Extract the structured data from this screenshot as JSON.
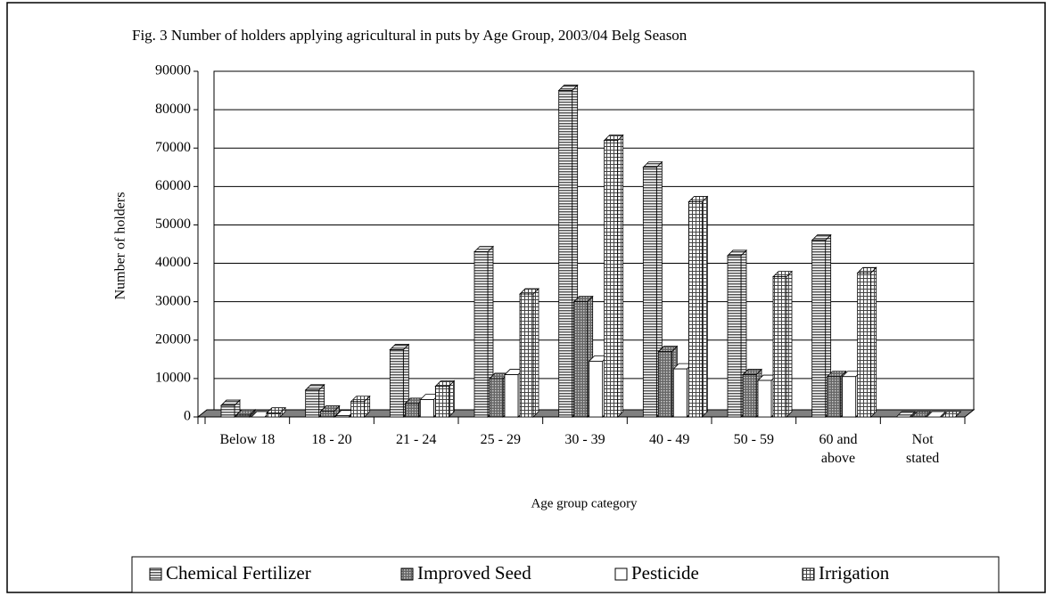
{
  "chart_data": {
    "type": "bar3d",
    "title": "Fig. 3 Number of holders applying agricultural in puts by Age Group, 2003/04 Belg Season",
    "x_label": "Age group category",
    "y_label": "Number of holders",
    "categories": [
      "Below 18",
      "18 - 20",
      "21 - 24",
      "25 - 29",
      "30 - 39",
      "40 - 49",
      "50 - 59",
      "60 and\nabove",
      "Not\nstated"
    ],
    "series": [
      {
        "name": "Chemical Fertilizer",
        "color": "#a0a0a0",
        "pattern": "horizontal",
        "values": [
          3000,
          7000,
          17500,
          43000,
          85000,
          65000,
          42000,
          46000,
          0
        ]
      },
      {
        "name": "Improved Seed",
        "color": "#808080",
        "pattern": "crosshatch",
        "values": [
          500,
          1500,
          3500,
          10000,
          30000,
          17000,
          11000,
          10500,
          0
        ]
      },
      {
        "name": "Pesticide",
        "color": "#ffffff",
        "pattern": "none",
        "values": [
          0,
          300,
          4500,
          11000,
          14500,
          12500,
          9500,
          10500,
          0
        ]
      },
      {
        "name": "Irrigation",
        "color": "#b0b0b0",
        "pattern": "grid",
        "values": [
          1000,
          4000,
          8000,
          32000,
          72000,
          56000,
          36500,
          37500,
          0
        ]
      }
    ],
    "ylim": [
      0,
      90000
    ],
    "yticks": [
      0,
      10000,
      20000,
      30000,
      40000,
      50000,
      60000,
      70000,
      80000,
      90000
    ],
    "grid": true,
    "legend": "bottom"
  }
}
